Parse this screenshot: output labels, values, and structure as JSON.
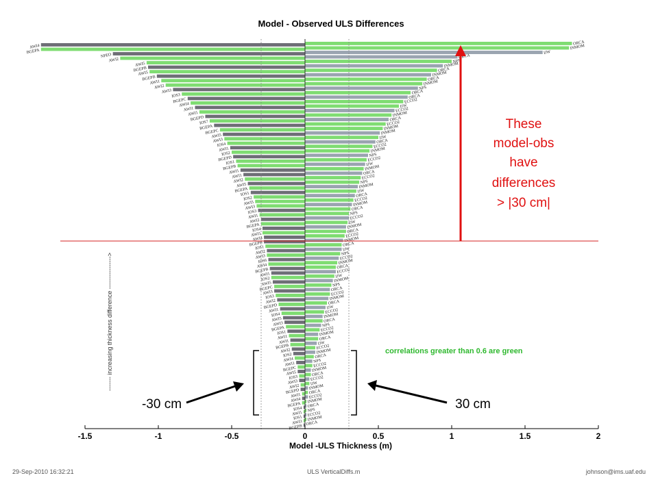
{
  "chart_data": {
    "type": "bar",
    "orientation": "horizontal",
    "title": "Model - Observed ULS Differences",
    "xlabel": "Model -ULS Thickness (m)",
    "xlim": [
      -1.5,
      2
    ],
    "xticks": [
      "-1.5",
      "-1",
      "-0.5",
      "0",
      "0.5",
      "1",
      "1.5",
      "2"
    ],
    "vertical_reference_lines": [
      -0.3,
      0.3
    ],
    "vertical_axis_label": "------- increasing thickness difference ---------------->",
    "horizontal_threshold_line": {
      "rank_from_top": 74,
      "color": "#d42020"
    },
    "legend_note": "correlations greater than 0.6 are green",
    "colors": {
      "green": "#7fdc72",
      "dark_gray": "#6e6e76",
      "light_gray": "#9aa4b0",
      "annotation_red": "#e01010",
      "note_green": "#2eb82e"
    },
    "negative_labels": [
      "AWI4",
      "BGEPA",
      "NPEO",
      "AWI2",
      "AWI5",
      "BGEPB",
      "AWI5",
      "BGEPB",
      "AWI1",
      "AWI2",
      "AWI3",
      "IOS3",
      "BGEPC",
      "AWI4",
      "AWI1",
      "AWI1",
      "BGEPD",
      "IOS7",
      "BGEPA",
      "BGEPC",
      "AWI5",
      "AWI3",
      "IOS4",
      "AWI1",
      "IOS2",
      "BGEPD",
      "IOS1",
      "BGEPB",
      "AWI1",
      "AWI1",
      "AWI2",
      "AWI5",
      "BGEPA",
      "IOS1",
      "IOS2",
      "AWI5",
      "AWI3",
      "IOS3",
      "AWI1",
      "AWI2",
      "BGEPA",
      "IOS4",
      "AWI1",
      "AWI4",
      "BGEPB",
      "IOS1",
      "AWI2",
      "AWI3",
      "IOS6",
      "AWI4",
      "BGEPB",
      "AWI1",
      "IOS2",
      "AWI5",
      "BGEPC",
      "AWI3",
      "IOS3",
      "AWI2",
      "BGEPD",
      "AWI1",
      "IOS4",
      "AWI5",
      "AWI3",
      "BGEPA",
      "IOS1",
      "AWI1",
      "AWI1",
      "BGEPB",
      "AWI2",
      "IOS2",
      "AWI4",
      "AWI1",
      "BGEPC",
      "AWI5",
      "IOS3",
      "AWI3",
      "AWI2",
      "BGEPD",
      "AWI1",
      "AWI4",
      "BGEPA",
      "IOS4",
      "AWI1",
      "IOS1",
      "AWI3",
      "BGEPB"
    ],
    "positive_labels": [
      "ORCA",
      "INMOM",
      "IJW",
      "ORCA",
      "NPS",
      "INMOM",
      "ORCA",
      "INMOM",
      "ORCA",
      "INMOM",
      "NPS",
      "ORCA",
      "ORCA",
      "ECCO2",
      "IJW",
      "ECCO2",
      "INMOM",
      "ORCA",
      "ECCO2",
      "INMOM",
      "INMOM",
      "IJW",
      "ORCA",
      "ECCO2",
      "INMOM",
      "NPS",
      "ECCO2",
      "IJW",
      "INMOM",
      "ORCA",
      "ECCO2",
      "NPS",
      "INMOM",
      "IJW",
      "ORCA",
      "ECCO2",
      "INMOM",
      "ORCA",
      "NPS",
      "ECCO2",
      "IJW",
      "INMOM",
      "ORCA",
      "ECCO2",
      "INMOM",
      "ORCA",
      "IJW",
      "NPS",
      "ECCO2",
      "INMOM",
      "ORCA",
      "ECCO2",
      "IJW",
      "INMOM",
      "NPS",
      "ORCA",
      "ECCO2",
      "INMOM",
      "ORCA",
      "IJW",
      "ECCO2",
      "INMOM",
      "ORCA",
      "NPS",
      "ECCO2",
      "INMOM",
      "ORCA",
      "IJW",
      "ECCO2",
      "INMOM",
      "ORCA",
      "NPS",
      "ECCO2",
      "INMOM",
      "ORCA",
      "ECCO2",
      "IJW",
      "INMOM",
      "ORCA",
      "ECCO2",
      "INMOM",
      "ORCA",
      "NPS",
      "ECCO2",
      "INMOM",
      "ORCA"
    ],
    "negative_series": {
      "values": [
        -1.98,
        -1.93,
        -1.31,
        -1.26,
        -1.08,
        -1.07,
        -1.06,
        -1.01,
        -0.98,
        -0.95,
        -0.9,
        -0.84,
        -0.8,
        -0.78,
        -0.75,
        -0.72,
        -0.68,
        -0.65,
        -0.62,
        -0.58,
        -0.56,
        -0.55,
        -0.53,
        -0.51,
        -0.5,
        -0.49,
        -0.47,
        -0.46,
        -0.44,
        -0.42,
        -0.41,
        -0.39,
        -0.38,
        -0.37,
        -0.35,
        -0.34,
        -0.33,
        -0.32,
        -0.31,
        -0.3,
        -0.3,
        -0.29,
        -0.29,
        -0.28,
        -0.28,
        -0.27,
        -0.26,
        -0.26,
        -0.25,
        -0.25,
        -0.24,
        -0.23,
        -0.23,
        -0.22,
        -0.21,
        -0.21,
        -0.2,
        -0.19,
        -0.18,
        -0.17,
        -0.16,
        -0.15,
        -0.14,
        -0.13,
        -0.12,
        -0.11,
        -0.1,
        -0.1,
        -0.09,
        -0.08,
        -0.07,
        -0.06,
        -0.05,
        -0.05,
        -0.04,
        -0.04,
        -0.03,
        -0.03,
        -0.02,
        -0.02,
        -0.02,
        -0.01,
        -0.01,
        -0.01,
        -0.01,
        -0.01
      ],
      "colors": [
        "d",
        "g",
        "d",
        "g",
        "g",
        "d",
        "g",
        "d",
        "g",
        "g",
        "d",
        "g",
        "d",
        "g",
        "d",
        "g",
        "d",
        "g",
        "d",
        "g",
        "d",
        "g",
        "g",
        "d",
        "g",
        "d",
        "g",
        "g",
        "d",
        "d",
        "g",
        "d",
        "g",
        "d",
        "g",
        "g",
        "g",
        "d",
        "g",
        "d",
        "g",
        "d",
        "g",
        "d",
        "d",
        "g",
        "d",
        "g",
        "d",
        "g",
        "d",
        "d",
        "g",
        "d",
        "g",
        "d",
        "g",
        "d",
        "g",
        "d",
        "g",
        "d",
        "d",
        "g",
        "d",
        "g",
        "d",
        "g",
        "d",
        "d",
        "g",
        "d",
        "g",
        "d",
        "g",
        "d",
        "g",
        "d",
        "g",
        "d",
        "g",
        "d",
        "g",
        "d",
        "g",
        "d"
      ]
    },
    "positive_series": {
      "values": [
        1.82,
        1.8,
        1.62,
        1.04,
        1.0,
        0.94,
        0.9,
        0.86,
        0.83,
        0.8,
        0.77,
        0.72,
        0.7,
        0.67,
        0.64,
        0.61,
        0.59,
        0.57,
        0.55,
        0.53,
        0.51,
        0.5,
        0.48,
        0.46,
        0.44,
        0.43,
        0.42,
        0.41,
        0.4,
        0.39,
        0.38,
        0.37,
        0.36,
        0.35,
        0.34,
        0.33,
        0.32,
        0.31,
        0.3,
        0.3,
        0.29,
        0.28,
        0.28,
        0.27,
        0.26,
        0.25,
        0.25,
        0.24,
        0.23,
        0.22,
        0.21,
        0.21,
        0.2,
        0.19,
        0.18,
        0.17,
        0.17,
        0.16,
        0.15,
        0.14,
        0.13,
        0.12,
        0.12,
        0.11,
        0.1,
        0.09,
        0.09,
        0.08,
        0.07,
        0.07,
        0.06,
        0.05,
        0.05,
        0.04,
        0.04,
        0.03,
        0.03,
        0.02,
        0.02,
        0.02,
        0.01,
        0.01,
        0.01,
        0.01,
        0.01,
        0.0
      ],
      "colors": [
        "g",
        "g",
        "l",
        "l",
        "g",
        "l",
        "g",
        "l",
        "g",
        "g",
        "l",
        "g",
        "l",
        "g",
        "g",
        "l",
        "g",
        "l",
        "g",
        "g",
        "l",
        "g",
        "l",
        "g",
        "g",
        "l",
        "g",
        "l",
        "g",
        "l",
        "g",
        "g",
        "l",
        "g",
        "l",
        "g",
        "l",
        "g",
        "g",
        "l",
        "g",
        "l",
        "g",
        "g",
        "l",
        "g",
        "l",
        "g",
        "l",
        "g",
        "g",
        "l",
        "g",
        "l",
        "g",
        "l",
        "g",
        "l",
        "g",
        "l",
        "g",
        "l",
        "g",
        "l",
        "g",
        "l",
        "g",
        "l",
        "g",
        "l",
        "g",
        "l",
        "g",
        "l",
        "g",
        "l",
        "g",
        "l",
        "g",
        "l",
        "g",
        "l",
        "g",
        "l",
        "g",
        "l"
      ]
    }
  },
  "annotations": {
    "red_arrow_text": [
      "These",
      "model-obs",
      "have",
      "differences",
      "> |30 cm|"
    ],
    "bracket_left_label": "-30 cm",
    "bracket_right_label": "30 cm"
  },
  "footer": {
    "date": "29-Sep-2010 16:32:21",
    "script": "ULS VerticalDiffs.m",
    "email": "johnson@ims.uaf.edu"
  }
}
